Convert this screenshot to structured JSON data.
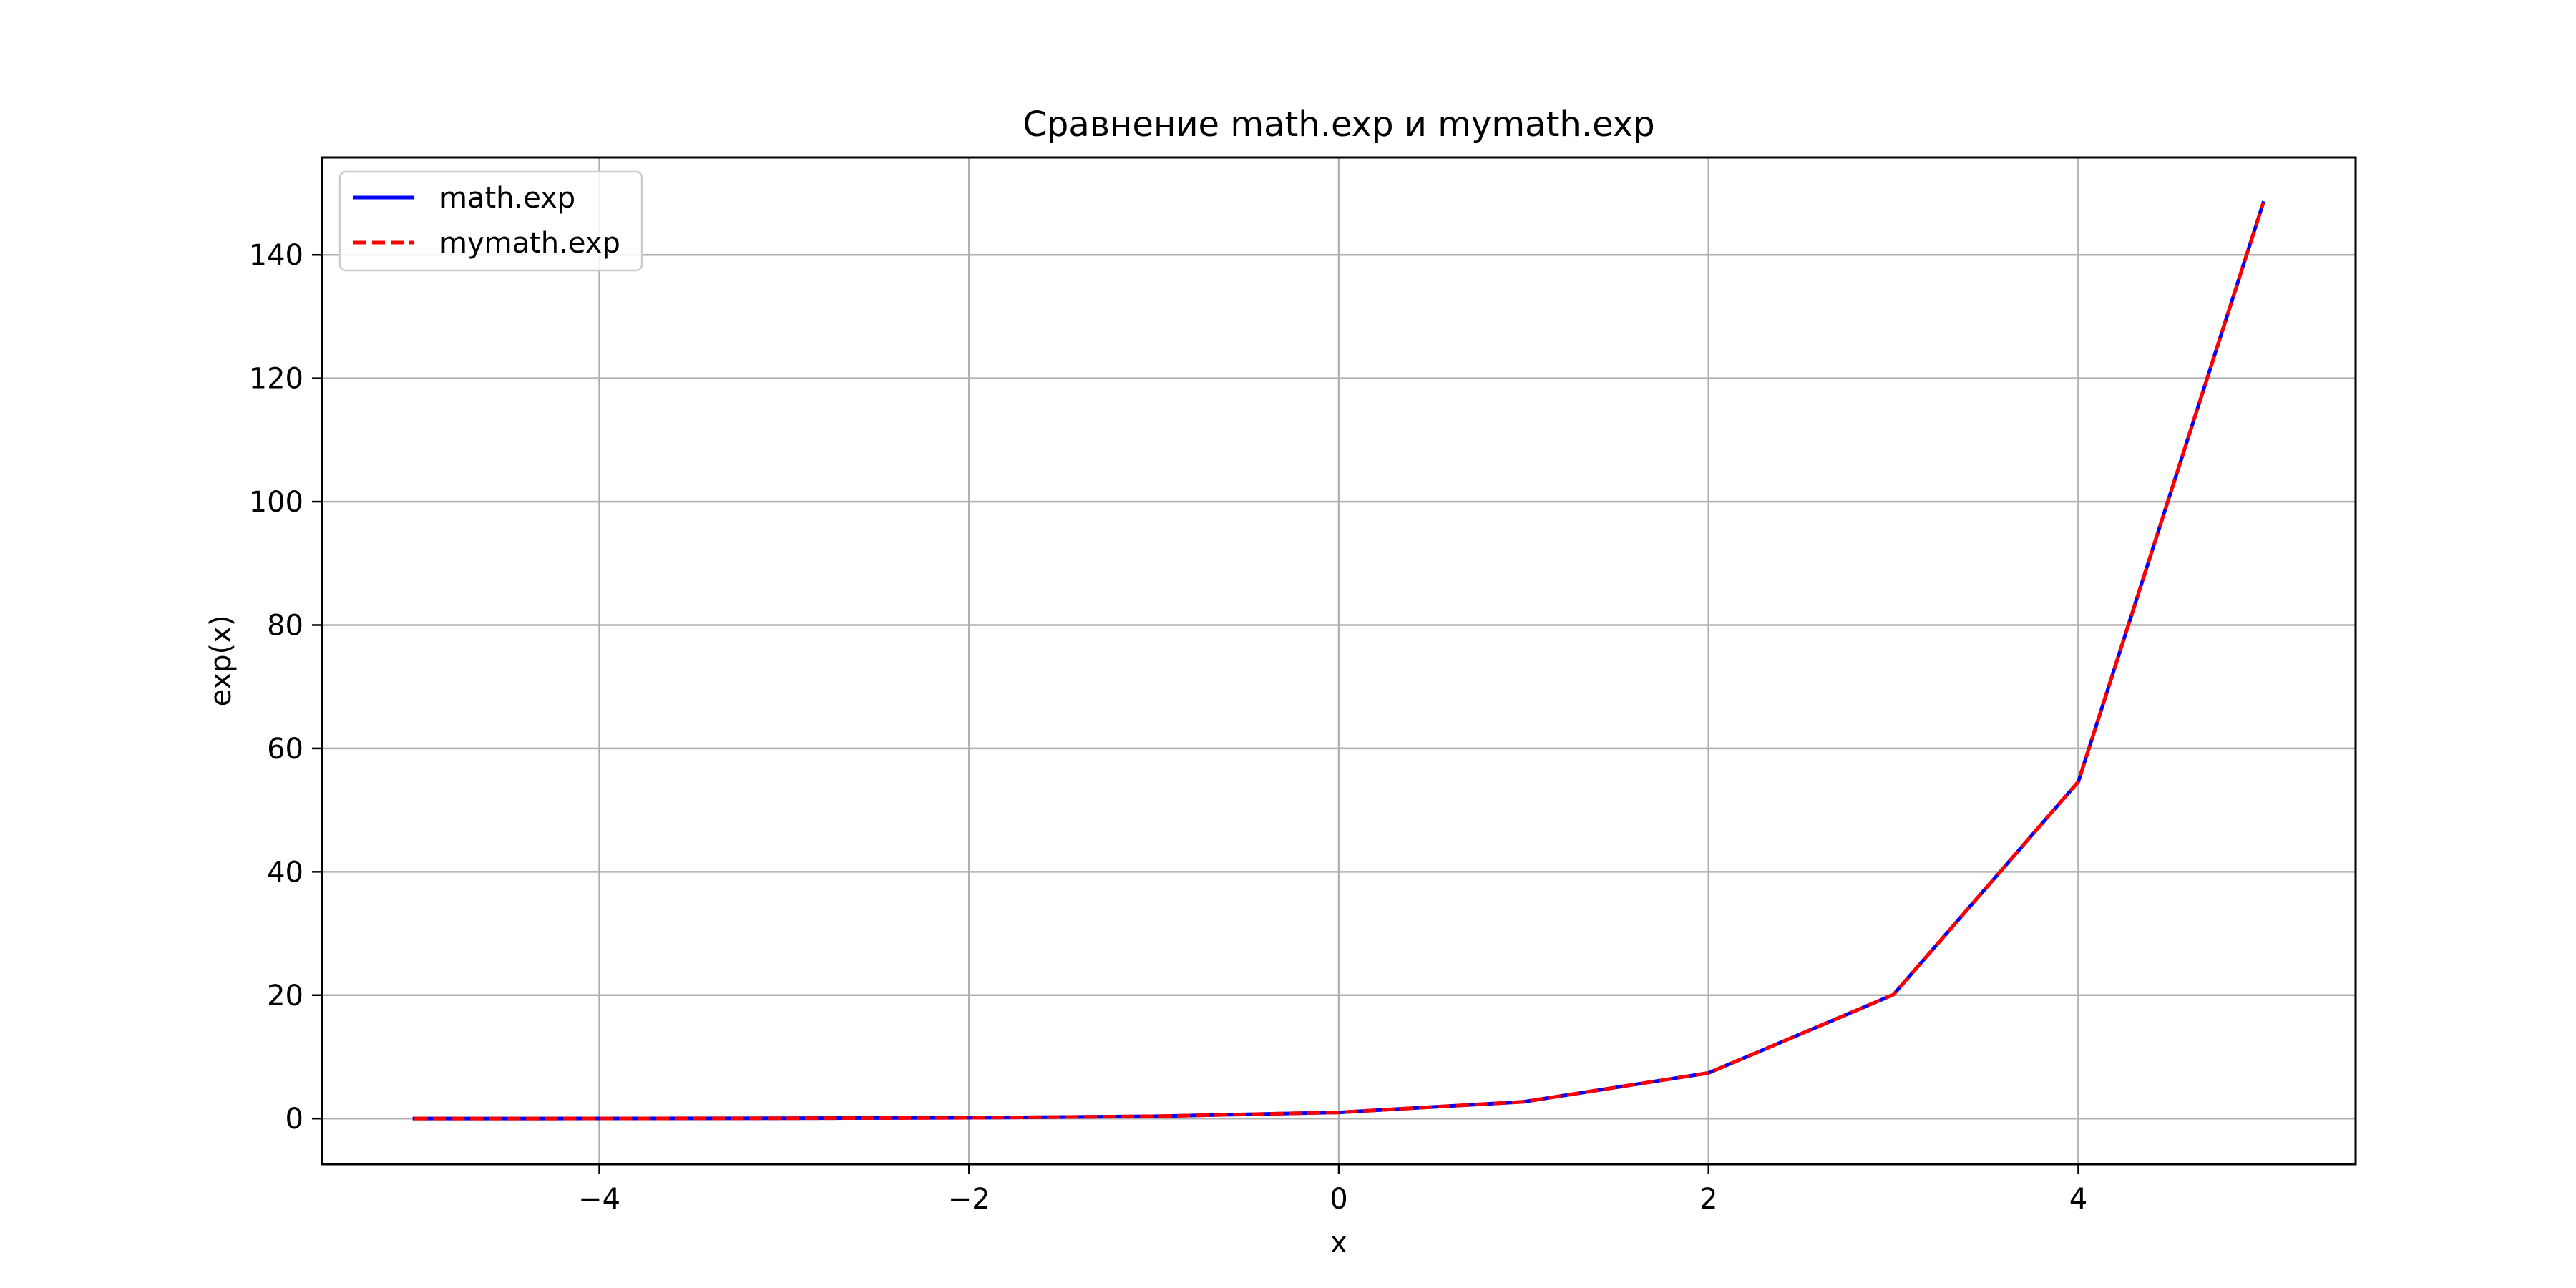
{
  "chart_data": {
    "type": "line",
    "title": "Сравнение math.exp и mymath.exp",
    "xlabel": "x",
    "ylabel": "exp(x)",
    "x": [
      -5,
      -4,
      -3,
      -2,
      -1,
      0,
      1,
      2,
      3,
      4,
      5
    ],
    "series": [
      {
        "name": "math.exp",
        "color": "#0000ff",
        "style": "solid",
        "values": [
          0.0067,
          0.0183,
          0.0498,
          0.1353,
          0.3679,
          1.0,
          2.7183,
          7.3891,
          20.0855,
          54.5982,
          148.4132
        ]
      },
      {
        "name": "mymath.exp",
        "color": "#ff0000",
        "style": "dashed",
        "values": [
          0.0067,
          0.0183,
          0.0498,
          0.1353,
          0.3679,
          1.0,
          2.7183,
          7.3891,
          20.0855,
          54.5982,
          148.4132
        ]
      }
    ],
    "xlim": [
      -5.5,
      5.5
    ],
    "ylim": [
      -7.4,
      155.8
    ],
    "xticks": [
      -4,
      -2,
      0,
      2,
      4
    ],
    "xtick_labels": [
      "−4",
      "−2",
      "0",
      "2",
      "4"
    ],
    "yticks": [
      0,
      20,
      40,
      60,
      80,
      100,
      120,
      140
    ],
    "ytick_labels": [
      "0",
      "20",
      "40",
      "60",
      "80",
      "100",
      "120",
      "140"
    ],
    "grid": true,
    "legend_position": "top-left"
  }
}
